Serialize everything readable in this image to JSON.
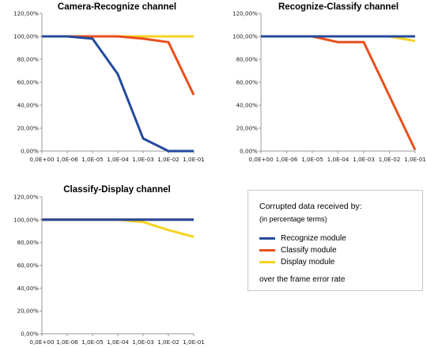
{
  "colors": {
    "recognize": "#244a9b",
    "classify": "#e8501d",
    "display": "#f6d321",
    "axis": "#9a9a9a",
    "grid": "#d9d9d9"
  },
  "legend": {
    "heading": "Corrupted data received by:",
    "subheading": "(in percentage terms)",
    "footer": "over the frame error rate",
    "items": [
      {
        "label": "Recognize module",
        "color": "#244a9b"
      },
      {
        "label": "Classify module",
        "color": "#e8501d"
      },
      {
        "label": "Display module",
        "color": "#f6d321"
      }
    ]
  },
  "chart_data": [
    {
      "type": "line",
      "title": "Camera-Recognize channel",
      "categories": [
        "0,0E+00",
        "1,0E-06",
        "1,0E-05",
        "1,0E-04",
        "1,0E-03",
        "1,0E-02",
        "1,0E-01"
      ],
      "yticks": [
        "0,00%",
        "20,00%",
        "40,00%",
        "60,00%",
        "80,00%",
        "100,00%",
        "120,00%"
      ],
      "ylim": [
        0,
        120
      ],
      "grid": false,
      "series": [
        {
          "name": "Recognize module",
          "values": [
            100,
            100,
            98,
            67,
            11,
            0,
            0
          ]
        },
        {
          "name": "Classify module",
          "values": [
            100,
            100,
            100,
            100,
            98,
            95,
            49
          ]
        },
        {
          "name": "Display module",
          "values": [
            100,
            100,
            100,
            100,
            100,
            100,
            100
          ]
        }
      ]
    },
    {
      "type": "line",
      "title": "Recognize-Classify channel",
      "categories": [
        "0,0E+00",
        "1,0E-06",
        "1,0E-05",
        "1,0E-04",
        "1,0E-03",
        "1,0E-02",
        "1,0E-01"
      ],
      "yticks": [
        "0,00%",
        "20,00%",
        "40,00%",
        "60,00%",
        "80,00%",
        "100,00%",
        "120,00%"
      ],
      "ylim": [
        0,
        120
      ],
      "grid": false,
      "series": [
        {
          "name": "Recognize module",
          "values": [
            100,
            100,
            100,
            100,
            100,
            100,
            100
          ]
        },
        {
          "name": "Classify module",
          "values": [
            100,
            100,
            100,
            95,
            95,
            48,
            1
          ]
        },
        {
          "name": "Display module",
          "values": [
            100,
            100,
            100,
            100,
            100,
            100,
            96
          ]
        }
      ]
    },
    {
      "type": "line",
      "title": "Classify-Display channel",
      "categories": [
        "0,0E+00",
        "1,0E-06",
        "1,0E-05",
        "1,0E-04",
        "1,0E-03",
        "1,0E-02",
        "1,0E-01"
      ],
      "yticks": [
        "0,00%",
        "20,00%",
        "40,00%",
        "60,00%",
        "80,00%",
        "100,00%",
        "120,00%"
      ],
      "ylim": [
        0,
        120
      ],
      "grid": false,
      "series": [
        {
          "name": "Recognize module",
          "values": [
            100,
            100,
            100,
            100,
            100,
            100,
            100
          ]
        },
        {
          "name": "Classify module",
          "values": [
            100,
            100,
            100,
            100,
            100,
            100,
            100
          ]
        },
        {
          "name": "Display module",
          "values": [
            100,
            100,
            100,
            100,
            98,
            91,
            85
          ]
        }
      ]
    }
  ]
}
